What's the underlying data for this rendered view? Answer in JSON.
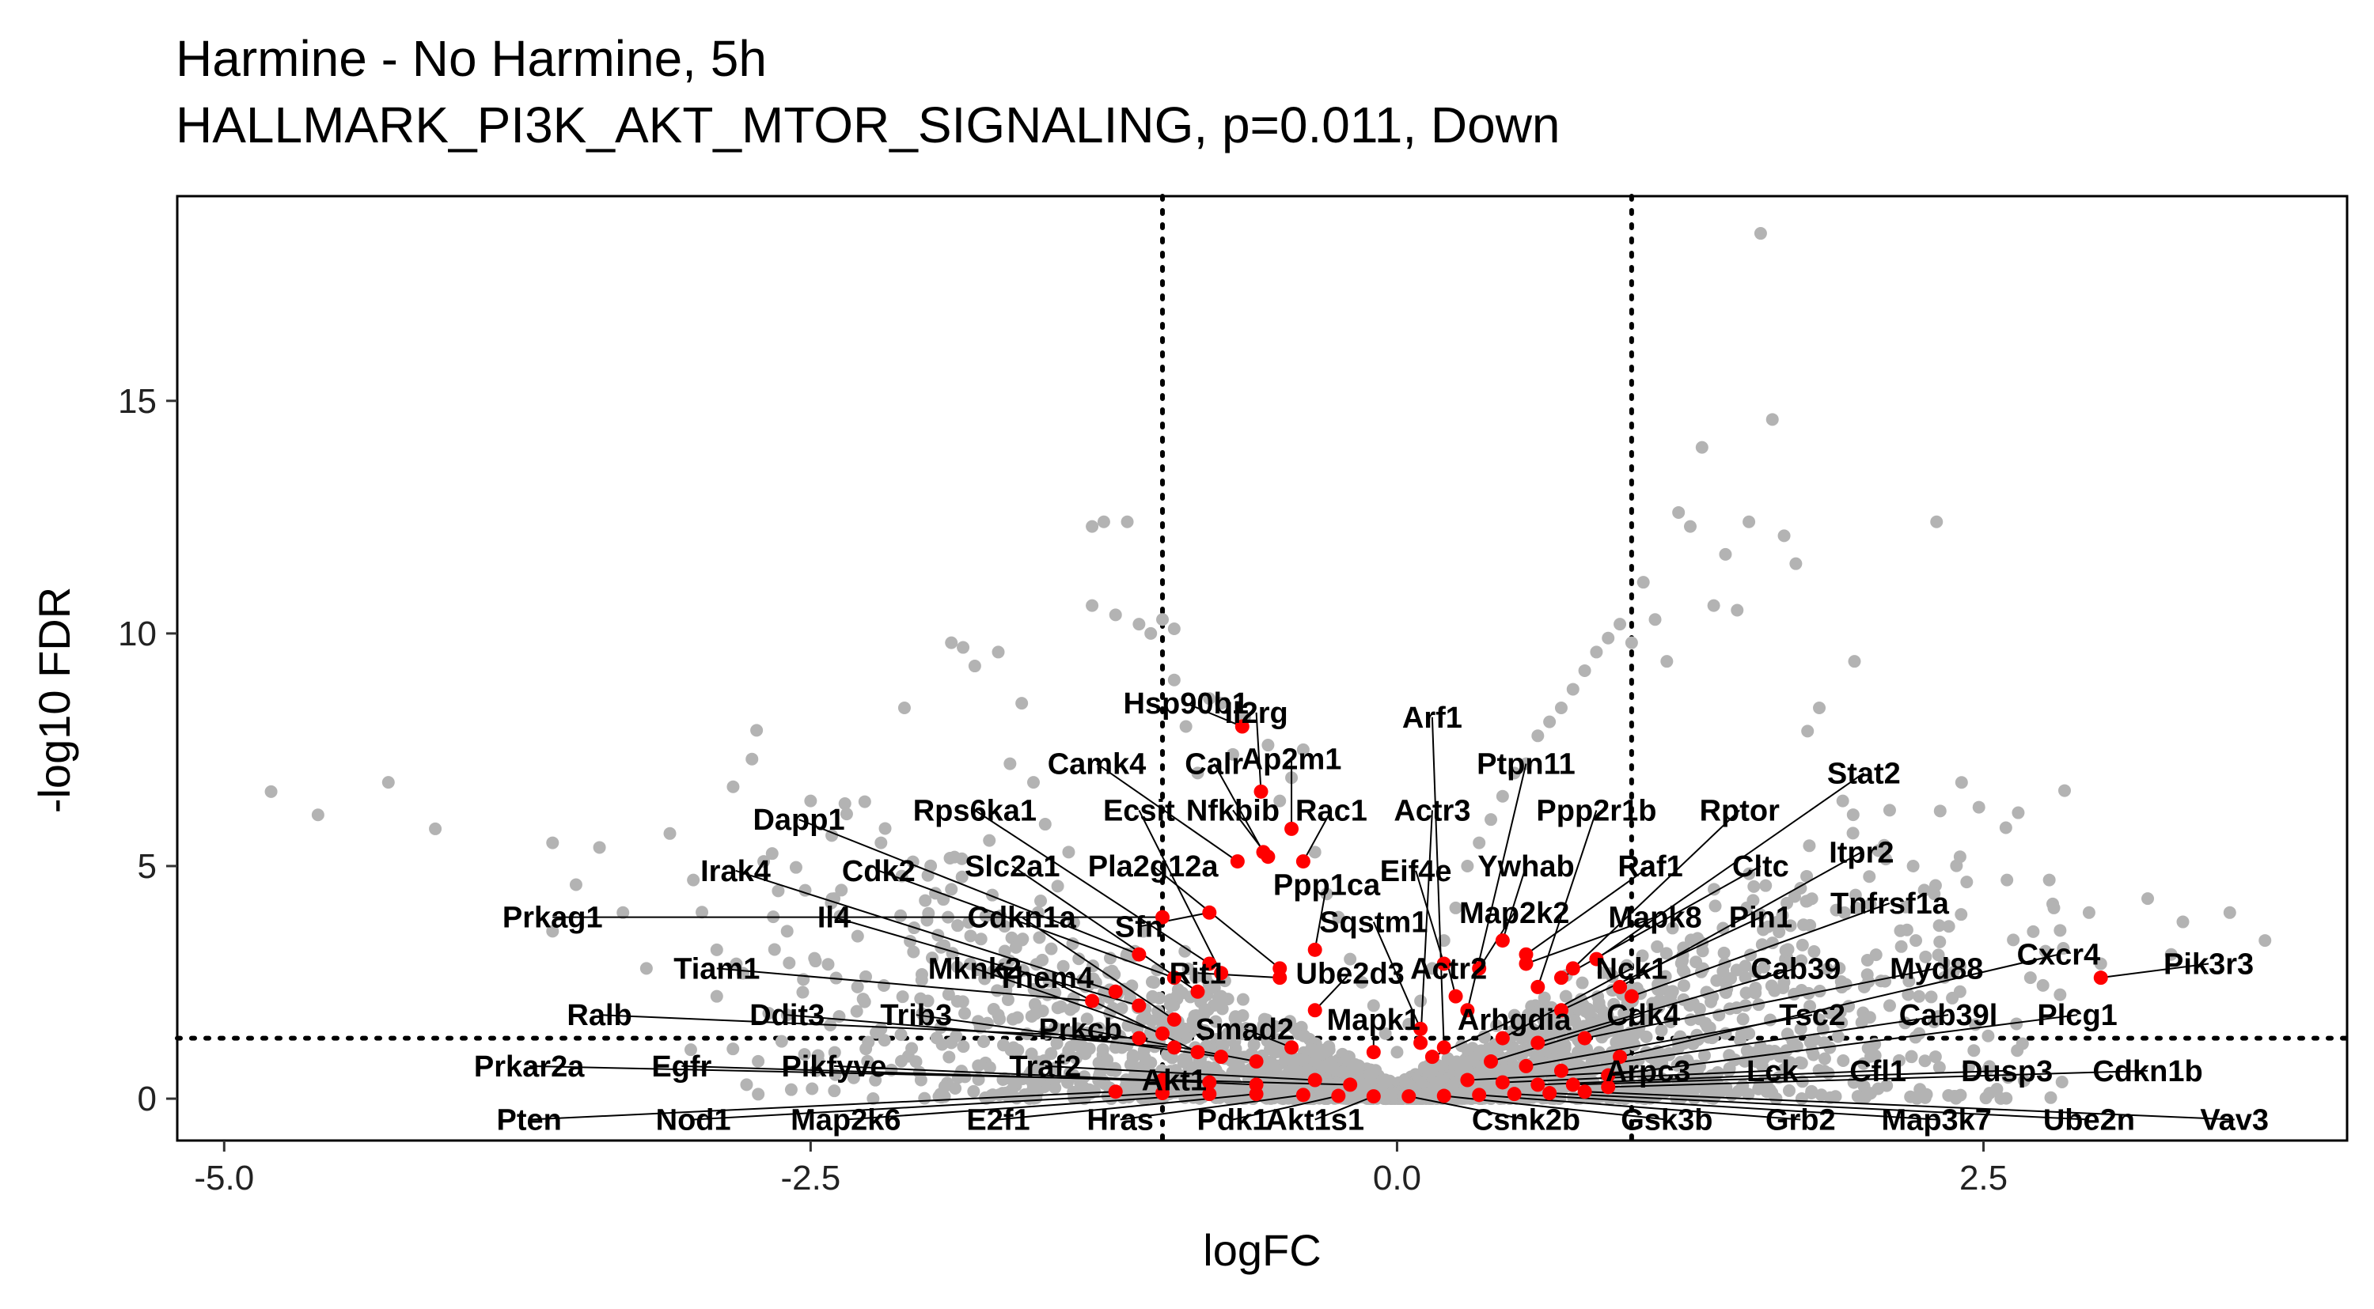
{
  "chart_data": {
    "type": "scatter",
    "title": "Harmine - No Harmine, 5h",
    "subtitle": "HALLMARK_PI3K_AKT_MTOR_SIGNALING, p=0.011, Down",
    "xlabel": "logFC",
    "ylabel": "-log10 FDR",
    "xlim": [
      -5.2,
      4.05
    ],
    "ylim": [
      -0.9,
      19.4
    ],
    "xticks": [
      -5.0,
      -2.5,
      0.0,
      2.5
    ],
    "xtick_labels": [
      "-5.0",
      "-2.5",
      "0.0",
      "2.5"
    ],
    "yticks": [
      0,
      5,
      10,
      15
    ],
    "ytick_labels": [
      "0",
      "5",
      "10",
      "15"
    ],
    "grid": false,
    "legend": "none",
    "colors": {
      "background_genes": "#b3b3b3",
      "pathway_genes": "#ff0000",
      "lines": "#000000"
    },
    "thresholds": {
      "logfc": [
        -1,
        1
      ],
      "neg_log10_fdr": 1.3
    },
    "background_points": [
      [
        -4.8,
        6.6
      ],
      [
        -4.6,
        6.1
      ],
      [
        -4.3,
        6.8
      ],
      [
        -4.1,
        5.8
      ],
      [
        -3.6,
        5.5
      ],
      [
        -3.5,
        4.6
      ],
      [
        -3.6,
        3.6
      ],
      [
        -3.4,
        5.4
      ],
      [
        -3.3,
        4.0
      ],
      [
        -3.1,
        5.7
      ],
      [
        -3.0,
        4.7
      ],
      [
        -2.9,
        3.2
      ],
      [
        -2.75,
        7.3
      ],
      [
        -2.7,
        5.1
      ],
      [
        -2.6,
        3.6
      ],
      [
        -2.5,
        6.4
      ],
      [
        -2.4,
        4.3
      ],
      [
        -2.2,
        5.5
      ],
      [
        -2.1,
        8.4
      ],
      [
        -2.0,
        4.8
      ],
      [
        -1.9,
        9.8
      ],
      [
        -1.85,
        9.7
      ],
      [
        -1.8,
        9.3
      ],
      [
        -1.7,
        9.6
      ],
      [
        -1.65,
        7.2
      ],
      [
        -1.6,
        8.5
      ],
      [
        -1.55,
        6.8
      ],
      [
        -1.5,
        5.9
      ],
      [
        -1.4,
        5.3
      ],
      [
        -1.3,
        10.6
      ],
      [
        -1.3,
        12.3
      ],
      [
        -1.25,
        12.4
      ],
      [
        -1.2,
        10.4
      ],
      [
        -1.15,
        12.4
      ],
      [
        -1.1,
        10.2
      ],
      [
        -1.05,
        10.0
      ],
      [
        -1.0,
        10.3
      ],
      [
        -0.95,
        10.1
      ],
      [
        -0.95,
        9.0
      ],
      [
        -0.9,
        8.0
      ],
      [
        -0.85,
        7.0
      ],
      [
        -0.8,
        8.6
      ],
      [
        -0.75,
        8.5
      ],
      [
        -0.7,
        7.4
      ],
      [
        -0.65,
        8.2
      ],
      [
        -0.55,
        7.6
      ],
      [
        -0.5,
        6.4
      ],
      [
        -0.45,
        6.9
      ],
      [
        -0.4,
        7.5
      ],
      [
        -0.35,
        5.3
      ],
      [
        -0.3,
        4.4
      ],
      [
        -0.25,
        3.9
      ],
      [
        -0.2,
        3.0
      ],
      [
        -0.15,
        2.5
      ],
      [
        -0.1,
        2.0
      ],
      [
        -0.05,
        1.4
      ],
      [
        0.0,
        1.0
      ],
      [
        0.05,
        1.6
      ],
      [
        0.1,
        2.1
      ],
      [
        0.15,
        2.8
      ],
      [
        0.2,
        3.4
      ],
      [
        0.25,
        4.1
      ],
      [
        0.3,
        5.0
      ],
      [
        0.35,
        5.5
      ],
      [
        0.4,
        6.0
      ],
      [
        0.45,
        6.5
      ],
      [
        0.5,
        7.0
      ],
      [
        0.55,
        7.2
      ],
      [
        0.6,
        7.8
      ],
      [
        0.65,
        8.1
      ],
      [
        0.7,
        8.4
      ],
      [
        0.75,
        8.8
      ],
      [
        0.8,
        9.2
      ],
      [
        0.85,
        9.6
      ],
      [
        0.9,
        9.9
      ],
      [
        0.95,
        10.2
      ],
      [
        1.0,
        9.8
      ],
      [
        1.05,
        11.1
      ],
      [
        1.1,
        10.3
      ],
      [
        1.15,
        9.4
      ],
      [
        1.2,
        12.6
      ],
      [
        1.25,
        12.3
      ],
      [
        1.3,
        14.0
      ],
      [
        1.35,
        10.6
      ],
      [
        1.4,
        11.7
      ],
      [
        1.45,
        10.5
      ],
      [
        1.5,
        12.4
      ],
      [
        1.55,
        18.6
      ],
      [
        1.6,
        14.6
      ],
      [
        1.65,
        12.1
      ],
      [
        1.7,
        11.5
      ],
      [
        1.75,
        7.9
      ],
      [
        1.8,
        8.4
      ],
      [
        1.9,
        6.4
      ],
      [
        1.95,
        9.4
      ],
      [
        2.1,
        6.2
      ],
      [
        2.2,
        5.0
      ],
      [
        2.3,
        12.4
      ],
      [
        2.4,
        5.2
      ],
      [
        2.6,
        4.7
      ],
      [
        2.8,
        4.1
      ],
      [
        2.95,
        4.0
      ],
      [
        3.2,
        4.3
      ],
      [
        3.35,
        3.8
      ],
      [
        3.55,
        4.0
      ],
      [
        3.7,
        3.4
      ],
      [
        -2.3,
        2.4
      ],
      [
        -2.0,
        2.1
      ],
      [
        -1.7,
        1.8
      ],
      [
        -1.5,
        1.4
      ],
      [
        -1.2,
        1.1
      ],
      [
        -0.9,
        0.8
      ],
      [
        -0.6,
        0.5
      ],
      [
        -0.3,
        0.3
      ],
      [
        0.3,
        0.3
      ],
      [
        0.6,
        0.6
      ],
      [
        0.9,
        0.9
      ],
      [
        1.2,
        1.1
      ],
      [
        1.5,
        1.4
      ],
      [
        1.8,
        1.7
      ],
      [
        2.1,
        2.0
      ],
      [
        2.4,
        2.3
      ],
      [
        2.7,
        2.6
      ],
      [
        3.0,
        2.9
      ],
      [
        3.3,
        3.1
      ],
      [
        -3.2,
        2.8
      ],
      [
        -2.9,
        2.2
      ],
      [
        -2.6,
        1.8
      ],
      [
        -2.2,
        1.5
      ],
      [
        -1.9,
        1.2
      ]
    ],
    "highlighted_points": [
      {
        "gene": "Hsp90b1",
        "x": -0.66,
        "y": 8.0
      },
      {
        "gene": "Il2rg",
        "x": -0.58,
        "y": 6.6
      },
      {
        "gene": "Arf1",
        "x": 0.2,
        "y": 1.1
      },
      {
        "gene": "Ap2m1",
        "x": -0.45,
        "y": 5.8
      },
      {
        "gene": "Calr",
        "x": -0.57,
        "y": 5.3
      },
      {
        "gene": "Camk4",
        "x": -0.68,
        "y": 5.1
      },
      {
        "gene": "Nfkbib",
        "x": -0.55,
        "y": 5.2
      },
      {
        "gene": "Rac1",
        "x": -0.4,
        "y": 5.1
      },
      {
        "gene": "Ptpn11",
        "x": 0.3,
        "y": 1.9
      },
      {
        "gene": "Actr3",
        "x": 0.1,
        "y": 1.2
      },
      {
        "gene": "Dapp1",
        "x": -1.1,
        "y": 3.1
      },
      {
        "gene": "Rps6ka1",
        "x": -0.8,
        "y": 2.9
      },
      {
        "gene": "Ecsit",
        "x": -0.75,
        "y": 2.7
      },
      {
        "gene": "Ppp2r1b",
        "x": 0.6,
        "y": 2.4
      },
      {
        "gene": "Rptor",
        "x": 0.75,
        "y": 2.8
      },
      {
        "gene": "Stat2",
        "x": 0.85,
        "y": 3.0
      },
      {
        "gene": "Irak4",
        "x": -1.2,
        "y": 2.3
      },
      {
        "gene": "Cdk2",
        "x": -0.95,
        "y": 2.6
      },
      {
        "gene": "Slc2a1",
        "x": -0.85,
        "y": 2.3
      },
      {
        "gene": "Pla2g12a",
        "x": -0.5,
        "y": 2.8
      },
      {
        "gene": "Ppp1ca",
        "x": -0.35,
        "y": 3.2
      },
      {
        "gene": "Eif4e",
        "x": 0.2,
        "y": 2.9
      },
      {
        "gene": "Ywhab",
        "x": 0.45,
        "y": 3.4
      },
      {
        "gene": "Raf1",
        "x": 0.55,
        "y": 3.1
      },
      {
        "gene": "Cltc",
        "x": 0.7,
        "y": 2.6
      },
      {
        "gene": "Itpr2",
        "x": 0.95,
        "y": 2.4
      },
      {
        "gene": "Prkag1",
        "x": -1.0,
        "y": 3.9
      },
      {
        "gene": "Il4",
        "x": -1.1,
        "y": 2.0
      },
      {
        "gene": "Cdkn1a",
        "x": -0.95,
        "y": 1.7
      },
      {
        "gene": "Sfn",
        "x": -0.8,
        "y": 4.0
      },
      {
        "gene": "Sqstm1",
        "x": 0.1,
        "y": 1.5
      },
      {
        "gene": "Map2k2",
        "x": 0.35,
        "y": 2.8
      },
      {
        "gene": "Mapk8",
        "x": 0.55,
        "y": 2.9
      },
      {
        "gene": "Pin1",
        "x": 0.7,
        "y": 1.9
      },
      {
        "gene": "Tnfrsf1a",
        "x": 1.0,
        "y": 2.2
      },
      {
        "gene": "Rit1",
        "x": -0.5,
        "y": 2.6
      },
      {
        "gene": "Ube2d3",
        "x": -0.35,
        "y": 1.9
      },
      {
        "gene": "Tiam1",
        "x": -1.3,
        "y": 2.1
      },
      {
        "gene": "Mknk2",
        "x": -1.0,
        "y": 1.4
      },
      {
        "gene": "Them4",
        "x": -0.85,
        "y": 1.0
      },
      {
        "gene": "Actr2",
        "x": 0.25,
        "y": 2.2
      },
      {
        "gene": "Nck1",
        "x": 0.45,
        "y": 1.3
      },
      {
        "gene": "Cab39",
        "x": 0.6,
        "y": 1.2
      },
      {
        "gene": "Myd88",
        "x": 0.8,
        "y": 1.3
      },
      {
        "gene": "Cxcr4",
        "x": 0.95,
        "y": 0.9
      },
      {
        "gene": "Pik3r3",
        "x": 3.0,
        "y": 2.6
      },
      {
        "gene": "Ralb",
        "x": -1.1,
        "y": 1.3
      },
      {
        "gene": "Ddit3",
        "x": -0.95,
        "y": 1.1
      },
      {
        "gene": "Trib3",
        "x": -0.75,
        "y": 0.9
      },
      {
        "gene": "Prkcb",
        "x": -0.6,
        "y": 0.8
      },
      {
        "gene": "Smad2",
        "x": -0.45,
        "y": 1.1
      },
      {
        "gene": "Mapk1",
        "x": -0.1,
        "y": 1.0
      },
      {
        "gene": "Arhgdia",
        "x": 0.15,
        "y": 0.9
      },
      {
        "gene": "Cdk4",
        "x": 0.4,
        "y": 0.8
      },
      {
        "gene": "Tsc2",
        "x": 0.55,
        "y": 0.7
      },
      {
        "gene": "Cab39l",
        "x": 0.7,
        "y": 0.6
      },
      {
        "gene": "Plcg1",
        "x": 0.9,
        "y": 0.5
      },
      {
        "gene": "Prkar2a",
        "x": -1.0,
        "y": 0.4
      },
      {
        "gene": "Egfr",
        "x": -0.8,
        "y": 0.35
      },
      {
        "gene": "Pikfyve",
        "x": -0.6,
        "y": 0.3
      },
      {
        "gene": "Traf2",
        "x": -0.35,
        "y": 0.4
      },
      {
        "gene": "Akt1",
        "x": -0.2,
        "y": 0.3
      },
      {
        "gene": "Arpc3",
        "x": 0.3,
        "y": 0.4
      },
      {
        "gene": "Lck",
        "x": 0.45,
        "y": 0.35
      },
      {
        "gene": "Cfl1",
        "x": 0.6,
        "y": 0.3
      },
      {
        "gene": "Dusp3",
        "x": 0.75,
        "y": 0.3
      },
      {
        "gene": "Cdkn1b",
        "x": 0.9,
        "y": 0.25
      },
      {
        "gene": "Pten",
        "x": -1.2,
        "y": 0.15
      },
      {
        "gene": "Nod1",
        "x": -1.0,
        "y": 0.12
      },
      {
        "gene": "Map2k6",
        "x": -0.8,
        "y": 0.1
      },
      {
        "gene": "E2f1",
        "x": -0.6,
        "y": 0.1
      },
      {
        "gene": "Hras",
        "x": -0.4,
        "y": 0.08
      },
      {
        "gene": "Pdk1",
        "x": -0.25,
        "y": 0.06
      },
      {
        "gene": "Akt1s1",
        "x": -0.1,
        "y": 0.05
      },
      {
        "gene": "Csnk2b",
        "x": 0.05,
        "y": 0.05
      },
      {
        "gene": "Gsk3b",
        "x": 0.2,
        "y": 0.06
      },
      {
        "gene": "Grb2",
        "x": 0.35,
        "y": 0.08
      },
      {
        "gene": "Map3k7",
        "x": 0.5,
        "y": 0.1
      },
      {
        "gene": "Ube2n",
        "x": 0.65,
        "y": 0.12
      },
      {
        "gene": "Vav3",
        "x": 0.8,
        "y": 0.15
      }
    ],
    "labels": [
      {
        "gene": "Hsp90b1",
        "lx": -0.9,
        "ly": 8.5
      },
      {
        "gene": "Il2rg",
        "lx": -0.6,
        "ly": 8.3
      },
      {
        "gene": "Arf1",
        "lx": 0.15,
        "ly": 8.2
      },
      {
        "gene": "Ap2m1",
        "lx": -0.45,
        "ly": 7.3
      },
      {
        "gene": "Calr",
        "lx": -0.78,
        "ly": 7.2
      },
      {
        "gene": "Camk4",
        "lx": -1.28,
        "ly": 7.2
      },
      {
        "gene": "Nfkbib",
        "lx": -0.7,
        "ly": 6.2
      },
      {
        "gene": "Rac1",
        "lx": -0.28,
        "ly": 6.2
      },
      {
        "gene": "Ptpn11",
        "lx": 0.55,
        "ly": 7.2
      },
      {
        "gene": "Actr3",
        "lx": 0.15,
        "ly": 6.2
      },
      {
        "gene": "Dapp1",
        "lx": -2.55,
        "ly": 6.0
      },
      {
        "gene": "Rps6ka1",
        "lx": -1.8,
        "ly": 6.2
      },
      {
        "gene": "Ecsit",
        "lx": -1.1,
        "ly": 6.2
      },
      {
        "gene": "Ppp2r1b",
        "lx": 0.85,
        "ly": 6.2
      },
      {
        "gene": "Rptor",
        "lx": 1.46,
        "ly": 6.2
      },
      {
        "gene": "Stat2",
        "lx": 1.99,
        "ly": 7.0
      },
      {
        "gene": "Irak4",
        "lx": -2.82,
        "ly": 4.9
      },
      {
        "gene": "Cdk2",
        "lx": -2.21,
        "ly": 4.9
      },
      {
        "gene": "Slc2a1",
        "lx": -1.64,
        "ly": 5.0
      },
      {
        "gene": "Pla2g12a",
        "lx": -1.04,
        "ly": 5.0
      },
      {
        "gene": "Ppp1ca",
        "lx": -0.3,
        "ly": 4.6
      },
      {
        "gene": "Eif4e",
        "lx": 0.08,
        "ly": 4.9
      },
      {
        "gene": "Ywhab",
        "lx": 0.55,
        "ly": 5.0
      },
      {
        "gene": "Raf1",
        "lx": 1.08,
        "ly": 5.0
      },
      {
        "gene": "Cltc",
        "lx": 1.55,
        "ly": 5.0
      },
      {
        "gene": "Itpr2",
        "lx": 1.98,
        "ly": 5.3
      },
      {
        "gene": "Prkag1",
        "lx": -3.6,
        "ly": 3.9
      },
      {
        "gene": "Il4",
        "lx": -2.4,
        "ly": 3.9
      },
      {
        "gene": "Cdkn1a",
        "lx": -1.6,
        "ly": 3.9
      },
      {
        "gene": "Sfn",
        "lx": -1.1,
        "ly": 3.7
      },
      {
        "gene": "Sqstm1",
        "lx": -0.1,
        "ly": 3.8
      },
      {
        "gene": "Map2k2",
        "lx": 0.5,
        "ly": 4.0
      },
      {
        "gene": "Mapk8",
        "lx": 1.1,
        "ly": 3.9
      },
      {
        "gene": "Pin1",
        "lx": 1.55,
        "ly": 3.9
      },
      {
        "gene": "Tnfrsf1a",
        "lx": 2.1,
        "ly": 4.2
      },
      {
        "gene": "Rit1",
        "lx": -0.85,
        "ly": 2.7
      },
      {
        "gene": "Ube2d3",
        "lx": -0.2,
        "ly": 2.7
      },
      {
        "gene": "Tiam1",
        "lx": -2.9,
        "ly": 2.8
      },
      {
        "gene": "Mknk2",
        "lx": -1.8,
        "ly": 2.8
      },
      {
        "gene": "Them4",
        "lx": -1.5,
        "ly": 2.6
      },
      {
        "gene": "Actr2",
        "lx": 0.22,
        "ly": 2.8
      },
      {
        "gene": "Nck1",
        "lx": 1.0,
        "ly": 2.8
      },
      {
        "gene": "Cab39",
        "lx": 1.7,
        "ly": 2.8
      },
      {
        "gene": "Myd88",
        "lx": 2.3,
        "ly": 2.8
      },
      {
        "gene": "Cxcr4",
        "lx": 2.82,
        "ly": 3.1
      },
      {
        "gene": "Pik3r3",
        "lx": 3.46,
        "ly": 2.9
      },
      {
        "gene": "Ralb",
        "lx": -3.4,
        "ly": 1.8
      },
      {
        "gene": "Ddit3",
        "lx": -2.6,
        "ly": 1.8
      },
      {
        "gene": "Trib3",
        "lx": -2.05,
        "ly": 1.8
      },
      {
        "gene": "Prkcb",
        "lx": -1.35,
        "ly": 1.5
      },
      {
        "gene": "Smad2",
        "lx": -0.65,
        "ly": 1.5
      },
      {
        "gene": "Mapk1",
        "lx": -0.1,
        "ly": 1.7
      },
      {
        "gene": "Arhgdia",
        "lx": 0.5,
        "ly": 1.7
      },
      {
        "gene": "Cdk4",
        "lx": 1.05,
        "ly": 1.8
      },
      {
        "gene": "Tsc2",
        "lx": 1.77,
        "ly": 1.8
      },
      {
        "gene": "Cab39l",
        "lx": 2.35,
        "ly": 1.8
      },
      {
        "gene": "Plcg1",
        "lx": 2.9,
        "ly": 1.8
      },
      {
        "gene": "Prkar2a",
        "lx": -3.7,
        "ly": 0.7
      },
      {
        "gene": "Egfr",
        "lx": -3.05,
        "ly": 0.7
      },
      {
        "gene": "Pikfyve",
        "lx": -2.4,
        "ly": 0.7
      },
      {
        "gene": "Traf2",
        "lx": -1.5,
        "ly": 0.7
      },
      {
        "gene": "Akt1",
        "lx": -0.95,
        "ly": 0.4
      },
      {
        "gene": "Arpc3",
        "lx": 1.07,
        "ly": 0.6
      },
      {
        "gene": "Lck",
        "lx": 1.6,
        "ly": 0.6
      },
      {
        "gene": "Cfl1",
        "lx": 2.05,
        "ly": 0.6
      },
      {
        "gene": "Dusp3",
        "lx": 2.6,
        "ly": 0.6
      },
      {
        "gene": "Cdkn1b",
        "lx": 3.2,
        "ly": 0.6
      },
      {
        "gene": "Pten",
        "lx": -3.7,
        "ly": -0.45
      },
      {
        "gene": "Nod1",
        "lx": -3.0,
        "ly": -0.45
      },
      {
        "gene": "Map2k6",
        "lx": -2.35,
        "ly": -0.45
      },
      {
        "gene": "E2f1",
        "lx": -1.7,
        "ly": -0.45
      },
      {
        "gene": "Hras",
        "lx": -1.18,
        "ly": -0.45
      },
      {
        "gene": "Pdk1",
        "lx": -0.7,
        "ly": -0.45
      },
      {
        "gene": "Akt1s1",
        "lx": -0.35,
        "ly": -0.45
      },
      {
        "gene": "Csnk2b",
        "lx": 0.55,
        "ly": -0.45
      },
      {
        "gene": "Gsk3b",
        "lx": 1.15,
        "ly": -0.45
      },
      {
        "gene": "Grb2",
        "lx": 1.72,
        "ly": -0.45
      },
      {
        "gene": "Map3k7",
        "lx": 2.3,
        "ly": -0.45
      },
      {
        "gene": "Ube2n",
        "lx": 2.95,
        "ly": -0.45
      },
      {
        "gene": "Vav3",
        "lx": 3.57,
        "ly": -0.45
      }
    ]
  }
}
